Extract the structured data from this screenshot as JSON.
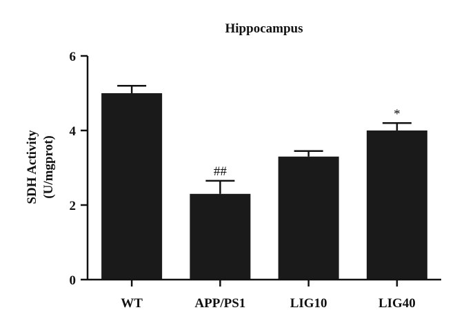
{
  "chart_data": {
    "type": "bar",
    "title": "Hippocampus",
    "ylabel_line1": "SDH Activity",
    "ylabel_line2": "(U/mgprot)",
    "xlabel": "",
    "categories": [
      "WT",
      "APP/PS1",
      "LIG10",
      "LIG40"
    ],
    "values": [
      5.0,
      2.3,
      3.3,
      4.0
    ],
    "errors": [
      0.2,
      0.35,
      0.15,
      0.2
    ],
    "annotations": [
      "",
      "##",
      "",
      "*"
    ],
    "ylim": [
      0,
      6
    ],
    "yticks": [
      "0",
      "2",
      "4",
      "6"
    ],
    "bar_color": "#1a1a1a",
    "grid": false,
    "legend": "none"
  }
}
